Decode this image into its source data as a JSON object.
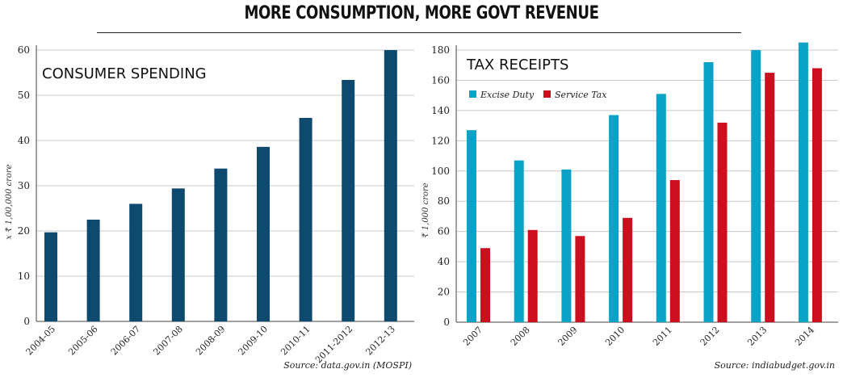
{
  "title": "MORE CONSUMPTION, MORE GOVT REVENUE",
  "colors": {
    "consumer": "#0d4a6e",
    "excise": "#0aa2c6",
    "service": "#cc0f1e",
    "grid": "#c8c8c8",
    "axis": "#444444"
  },
  "chart_data": [
    {
      "type": "bar",
      "title": "CONSUMER SPENDING",
      "ylabel": "x ₹ 1,00,000 crore",
      "xlabel": "",
      "ylim": [
        0,
        60
      ],
      "yticks": [
        0,
        10,
        20,
        30,
        40,
        50,
        60
      ],
      "grid": true,
      "categories": [
        "2004-05",
        "2005-06",
        "2006-07",
        "2007-08",
        "2008-09",
        "2009-10",
        "2010-11",
        "2011-2012",
        "2012-13"
      ],
      "values": [
        19.7,
        22.5,
        26,
        29.4,
        33.8,
        38.6,
        45,
        53.4,
        60
      ],
      "source": "Source: data.gov.in (MOSPI)"
    },
    {
      "type": "bar",
      "title": "TAX RECEIPTS",
      "ylabel": "₹ 1,000 crore",
      "xlabel": "",
      "ylim": [
        0,
        180
      ],
      "yticks": [
        0,
        20,
        40,
        60,
        80,
        100,
        120,
        140,
        160,
        180
      ],
      "grid": true,
      "legend_position": "top-left",
      "categories": [
        "2007",
        "2008",
        "2009",
        "2010",
        "2011",
        "2012",
        "2013",
        "2014"
      ],
      "series": [
        {
          "name": "Excise Duty",
          "values": [
            127,
            107,
            101,
            137,
            151,
            172,
            180,
            185
          ]
        },
        {
          "name": "Service Tax",
          "values": [
            49,
            61,
            57,
            69,
            94,
            132,
            165,
            168
          ]
        }
      ],
      "source": "Source: indiabudget.gov.in"
    }
  ]
}
